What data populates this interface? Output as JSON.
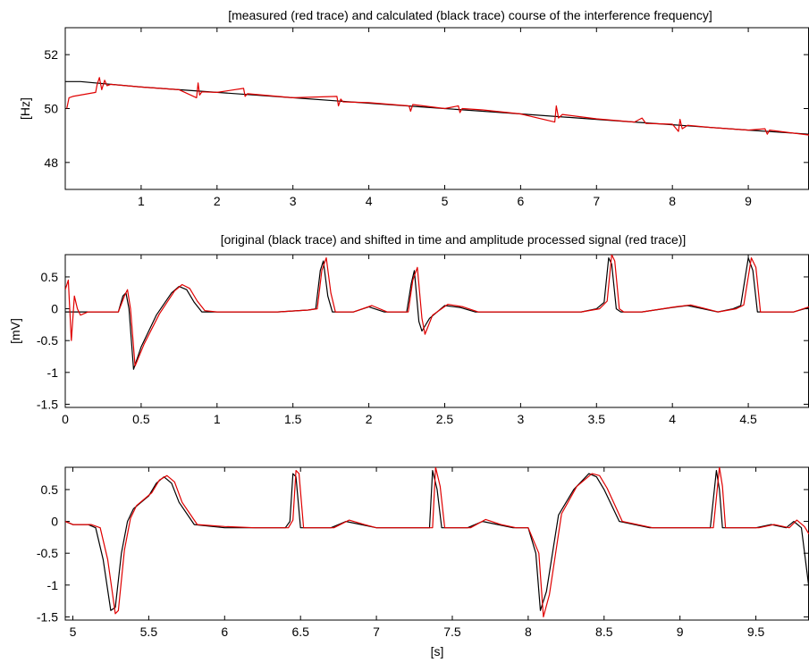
{
  "chart_data": [
    {
      "type": "line",
      "title": "[measured (red trace) and calculated (black trace) course of the interference frequency]",
      "xlabel": "",
      "ylabel": "[Hz]",
      "xlim": [
        0,
        9.8
      ],
      "ylim": [
        47,
        53
      ],
      "xticks": [
        1,
        2,
        3,
        4,
        5,
        6,
        7,
        8,
        9
      ],
      "yticks": [
        48,
        50,
        52
      ],
      "grid": false,
      "series": [
        {
          "color": "#000000",
          "x": [
            0,
            0.2,
            1,
            2,
            3,
            4,
            5,
            6,
            7,
            8,
            9,
            9.8
          ],
          "y": [
            51.0,
            51.0,
            50.8,
            50.6,
            50.4,
            50.2,
            50.0,
            49.8,
            49.6,
            49.4,
            49.2,
            49.05
          ]
        },
        {
          "color": "#e00000",
          "x": [
            0.02,
            0.05,
            0.1,
            0.2,
            0.3,
            0.4,
            0.42,
            0.45,
            0.48,
            0.52,
            0.55,
            0.6,
            0.8,
            1.0,
            1.5,
            1.73,
            1.75,
            1.77,
            1.8,
            2.0,
            2.35,
            2.37,
            2.4,
            3.0,
            3.58,
            3.6,
            3.63,
            3.66,
            4.0,
            4.53,
            4.55,
            4.58,
            5.0,
            5.18,
            5.2,
            5.23,
            5.5,
            6.0,
            6.45,
            6.47,
            6.5,
            6.55,
            7.0,
            7.5,
            7.6,
            7.65,
            8.0,
            8.08,
            8.1,
            8.13,
            8.2,
            8.5,
            9.0,
            9.22,
            9.25,
            9.28,
            9.5,
            9.8
          ],
          "y": [
            50.0,
            50.4,
            50.45,
            50.5,
            50.55,
            50.6,
            50.9,
            51.15,
            50.7,
            51.05,
            50.85,
            50.9,
            50.85,
            50.8,
            50.7,
            50.4,
            50.95,
            50.5,
            50.62,
            50.6,
            50.75,
            50.45,
            50.55,
            50.4,
            50.45,
            50.1,
            50.35,
            50.25,
            50.22,
            50.1,
            49.9,
            50.15,
            50.0,
            50.1,
            49.85,
            50.0,
            49.95,
            49.8,
            49.5,
            50.1,
            49.65,
            49.78,
            49.62,
            49.5,
            49.65,
            49.45,
            49.42,
            49.15,
            49.6,
            49.25,
            49.38,
            49.3,
            49.2,
            49.25,
            49.05,
            49.2,
            49.12,
            49.02
          ]
        }
      ]
    },
    {
      "type": "line",
      "title": "[original (black trace) and shifted in time and amplitude processed signal (red trace)]",
      "xlabel": "",
      "ylabel": "[mV]",
      "xlim": [
        0,
        4.9
      ],
      "ylim": [
        -1.55,
        0.85
      ],
      "xticks": [
        0,
        0.5,
        1,
        1.5,
        2,
        2.5,
        3,
        3.5,
        4,
        4.5
      ],
      "yticks": [
        -1.5,
        -1,
        -0.5,
        0,
        0.5
      ],
      "grid": false,
      "series": [
        {
          "color": "#000000",
          "x": [
            0.0,
            0.05,
            0.2,
            0.35,
            0.38,
            0.4,
            0.42,
            0.45,
            0.5,
            0.6,
            0.7,
            0.75,
            0.8,
            0.85,
            0.9,
            1.0,
            1.2,
            1.4,
            1.6,
            1.65,
            1.68,
            1.7,
            1.73,
            1.76,
            1.8,
            1.9,
            2.0,
            2.1,
            2.2,
            2.25,
            2.28,
            2.3,
            2.33,
            2.35,
            2.4,
            2.5,
            2.6,
            2.7,
            2.8,
            3.0,
            3.2,
            3.4,
            3.5,
            3.55,
            3.58,
            3.6,
            3.63,
            3.66,
            3.7,
            3.8,
            4.0,
            4.1,
            4.2,
            4.3,
            4.4,
            4.45,
            4.5,
            4.53,
            4.56,
            4.6,
            4.7,
            4.8,
            4.9
          ],
          "y": [
            -0.05,
            -0.05,
            -0.05,
            -0.05,
            0.2,
            0.25,
            0.0,
            -0.95,
            -0.6,
            -0.1,
            0.25,
            0.35,
            0.3,
            0.1,
            -0.05,
            -0.05,
            -0.05,
            -0.05,
            -0.02,
            0.0,
            0.6,
            0.75,
            0.2,
            -0.05,
            -0.05,
            -0.05,
            0.03,
            -0.05,
            -0.05,
            -0.05,
            0.4,
            0.6,
            -0.2,
            -0.35,
            -0.15,
            0.05,
            0.02,
            -0.05,
            -0.05,
            -0.05,
            -0.05,
            -0.05,
            0.0,
            0.1,
            0.8,
            0.7,
            0.0,
            -0.05,
            -0.05,
            -0.05,
            0.02,
            0.05,
            0.0,
            -0.05,
            0.0,
            0.05,
            0.8,
            0.6,
            -0.05,
            -0.05,
            -0.05,
            -0.05,
            0.02
          ]
        },
        {
          "color": "#e00000",
          "x": [
            0.0,
            0.02,
            0.04,
            0.06,
            0.08,
            0.1,
            0.15,
            0.2,
            0.35,
            0.39,
            0.41,
            0.43,
            0.46,
            0.52,
            0.62,
            0.72,
            0.77,
            0.82,
            0.87,
            0.92,
            1.0,
            1.2,
            1.4,
            1.6,
            1.66,
            1.69,
            1.72,
            1.75,
            1.78,
            1.82,
            1.9,
            2.02,
            2.12,
            2.2,
            2.26,
            2.29,
            2.32,
            2.35,
            2.37,
            2.42,
            2.52,
            2.62,
            2.72,
            2.8,
            3.0,
            3.2,
            3.4,
            3.52,
            3.57,
            3.6,
            3.62,
            3.65,
            3.68,
            3.72,
            3.8,
            4.02,
            4.12,
            4.22,
            4.3,
            4.42,
            4.47,
            4.52,
            4.55,
            4.58,
            4.62,
            4.7,
            4.8,
            4.9
          ],
          "y": [
            0.3,
            0.45,
            -0.5,
            0.2,
            0.0,
            -0.1,
            -0.05,
            -0.05,
            -0.05,
            0.2,
            0.3,
            0.0,
            -0.9,
            -0.55,
            -0.08,
            0.28,
            0.38,
            0.32,
            0.12,
            -0.03,
            -0.05,
            -0.05,
            -0.05,
            -0.02,
            0.0,
            0.6,
            0.8,
            0.25,
            -0.05,
            -0.05,
            -0.05,
            0.05,
            -0.05,
            -0.05,
            -0.05,
            0.45,
            0.65,
            -0.15,
            -0.4,
            -0.1,
            0.07,
            0.03,
            -0.05,
            -0.05,
            -0.05,
            -0.05,
            -0.05,
            0.0,
            0.12,
            0.85,
            0.75,
            0.0,
            -0.05,
            -0.05,
            -0.05,
            0.03,
            0.06,
            0.0,
            -0.05,
            0.0,
            0.06,
            0.8,
            0.65,
            -0.05,
            -0.05,
            -0.05,
            -0.05,
            0.03
          ]
        }
      ]
    },
    {
      "type": "line",
      "title": "",
      "xlabel": "[s]",
      "ylabel": "",
      "xlim": [
        4.95,
        9.85
      ],
      "ylim": [
        -1.55,
        0.85
      ],
      "xticks": [
        5,
        5.5,
        6,
        6.5,
        7,
        7.5,
        8,
        8.5,
        9,
        9.5
      ],
      "yticks": [
        -1.5,
        -1,
        -0.5,
        0,
        0.5
      ],
      "grid": false,
      "series": [
        {
          "color": "#000000",
          "x": [
            4.95,
            5.0,
            5.1,
            5.15,
            5.2,
            5.25,
            5.28,
            5.32,
            5.36,
            5.4,
            5.5,
            5.55,
            5.6,
            5.65,
            5.7,
            5.8,
            6.0,
            6.2,
            6.4,
            6.43,
            6.45,
            6.47,
            6.5,
            6.6,
            6.7,
            6.8,
            6.9,
            7.0,
            7.2,
            7.35,
            7.37,
            7.4,
            7.43,
            7.5,
            7.6,
            7.7,
            7.8,
            7.9,
            8.0,
            8.05,
            8.08,
            8.12,
            8.2,
            8.3,
            8.4,
            8.45,
            8.5,
            8.6,
            8.8,
            9.0,
            9.2,
            9.24,
            9.26,
            9.28,
            9.32,
            9.4,
            9.5,
            9.6,
            9.7,
            9.75,
            9.8,
            9.85
          ],
          "y": [
            0.0,
            -0.05,
            -0.05,
            -0.1,
            -0.6,
            -1.4,
            -1.35,
            -0.5,
            0.0,
            0.2,
            0.4,
            0.6,
            0.7,
            0.6,
            0.3,
            -0.05,
            -0.1,
            -0.1,
            -0.1,
            0.0,
            0.75,
            0.7,
            -0.1,
            -0.1,
            -0.1,
            0.0,
            -0.05,
            -0.1,
            -0.1,
            -0.1,
            0.8,
            0.5,
            -0.1,
            -0.1,
            -0.1,
            0.0,
            -0.05,
            -0.1,
            -0.1,
            -0.5,
            -1.4,
            -1.1,
            0.1,
            0.5,
            0.75,
            0.7,
            0.5,
            0.0,
            -0.1,
            -0.1,
            -0.1,
            0.8,
            0.5,
            -0.1,
            -0.1,
            -0.1,
            -0.1,
            -0.05,
            -0.1,
            0.0,
            -0.1,
            -1.05
          ]
        },
        {
          "color": "#e00000",
          "x": [
            4.95,
            5.0,
            5.12,
            5.18,
            5.23,
            5.28,
            5.3,
            5.34,
            5.38,
            5.42,
            5.52,
            5.57,
            5.62,
            5.67,
            5.72,
            5.82,
            6.0,
            6.2,
            6.42,
            6.45,
            6.47,
            6.49,
            6.52,
            6.62,
            6.72,
            6.82,
            6.92,
            7.0,
            7.2,
            7.37,
            7.39,
            7.42,
            7.45,
            7.52,
            7.62,
            7.72,
            7.82,
            7.92,
            8.0,
            8.07,
            8.1,
            8.14,
            8.22,
            8.32,
            8.42,
            8.47,
            8.52,
            8.62,
            8.82,
            9.0,
            9.22,
            9.26,
            9.28,
            9.3,
            9.34,
            9.42,
            9.52,
            9.62,
            9.72,
            9.77,
            9.82,
            9.85
          ],
          "y": [
            0.0,
            -0.05,
            -0.05,
            -0.1,
            -0.6,
            -1.45,
            -1.4,
            -0.45,
            0.05,
            0.25,
            0.45,
            0.65,
            0.72,
            0.62,
            0.3,
            -0.05,
            -0.08,
            -0.1,
            -0.1,
            0.02,
            0.8,
            0.75,
            -0.1,
            -0.1,
            -0.1,
            0.02,
            -0.05,
            -0.1,
            -0.1,
            -0.1,
            0.85,
            0.55,
            -0.1,
            -0.1,
            -0.1,
            0.03,
            -0.05,
            -0.1,
            -0.1,
            -0.5,
            -1.5,
            -1.15,
            0.12,
            0.55,
            0.75,
            0.72,
            0.52,
            0.0,
            -0.1,
            -0.1,
            -0.1,
            0.85,
            0.55,
            -0.1,
            -0.1,
            -0.1,
            -0.1,
            -0.05,
            -0.1,
            0.02,
            -0.08,
            -0.2
          ]
        }
      ]
    }
  ]
}
